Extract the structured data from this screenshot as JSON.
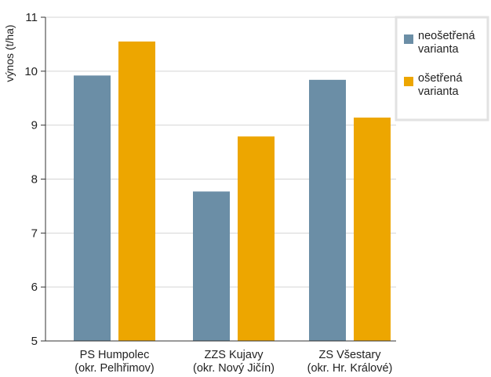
{
  "chart_data": {
    "type": "bar",
    "ylabel": "výnos (t/ha)",
    "xlabel": "",
    "title": "",
    "ylim": [
      5,
      11
    ],
    "yticks": [
      5,
      6,
      7,
      8,
      9,
      10,
      11
    ],
    "categories": [
      [
        "PS Humpolec",
        "(okr. Pelhřimov)"
      ],
      [
        "ZZS Kujavy",
        "(okr. Nový Jičín)"
      ],
      [
        "ZS Všestary",
        "(okr. Hr. Králové)"
      ]
    ],
    "series": [
      {
        "name": "neošetřená varianta",
        "legend_lines": [
          "neošetřená",
          "varianta"
        ],
        "color": "#6b8ea6",
        "values": [
          9.92,
          7.77,
          9.84
        ]
      },
      {
        "name": "ošetřená varianta",
        "legend_lines": [
          "ošetřená",
          "varianta"
        ],
        "color": "#eda600",
        "values": [
          10.55,
          8.79,
          9.14
        ]
      }
    ],
    "grid": true,
    "legend_position": "top-right"
  }
}
